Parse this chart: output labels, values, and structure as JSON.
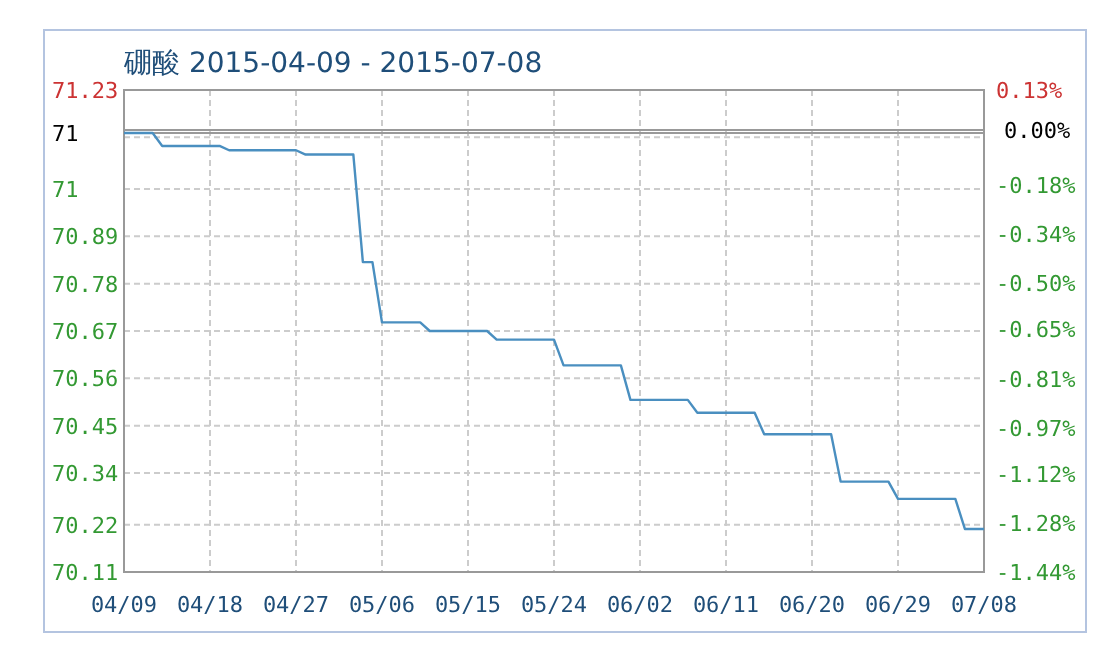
{
  "chart_data": {
    "type": "line",
    "title": "硼酸 2015-04-09 - 2015-07-08",
    "x": [
      "2015-04-09",
      "2015-04-12",
      "2015-04-13",
      "2015-04-19",
      "2015-04-20",
      "2015-04-27",
      "2015-04-28",
      "2015-05-03",
      "2015-05-04",
      "2015-05-05",
      "2015-05-06",
      "2015-05-10",
      "2015-05-11",
      "2015-05-17",
      "2015-05-18",
      "2015-05-24",
      "2015-05-25",
      "2015-05-31",
      "2015-06-01",
      "2015-06-07",
      "2015-06-08",
      "2015-06-14",
      "2015-06-15",
      "2015-06-22",
      "2015-06-23",
      "2015-06-28",
      "2015-06-29",
      "2015-07-05",
      "2015-07-06",
      "2015-07-08"
    ],
    "series": [
      {
        "color": "#4a8fc0",
        "values": [
          71.13,
          71.13,
          71.1,
          71.1,
          71.09,
          71.09,
          71.08,
          71.08,
          70.83,
          70.83,
          70.69,
          70.69,
          70.67,
          70.67,
          70.65,
          70.65,
          70.59,
          70.59,
          70.51,
          70.51,
          70.48,
          70.48,
          70.43,
          70.43,
          70.32,
          70.32,
          70.28,
          70.28,
          70.21,
          70.21
        ]
      }
    ],
    "xlim": [
      "2015-04-09",
      "2015-07-08"
    ],
    "xticks": [
      {
        "value": "2015-04-09",
        "label": "04/09"
      },
      {
        "value": "2015-04-18",
        "label": "04/18"
      },
      {
        "value": "2015-04-27",
        "label": "04/27"
      },
      {
        "value": "2015-05-06",
        "label": "05/06"
      },
      {
        "value": "2015-05-15",
        "label": "05/15"
      },
      {
        "value": "2015-05-24",
        "label": "05/24"
      },
      {
        "value": "2015-06-02",
        "label": "06/02"
      },
      {
        "value": "2015-06-11",
        "label": "06/11"
      },
      {
        "value": "2015-06-20",
        "label": "06/20"
      },
      {
        "value": "2015-06-29",
        "label": "06/29"
      },
      {
        "value": "2015-07-08",
        "label": "07/08"
      }
    ],
    "ylim": [
      70.11,
      71.23
    ],
    "yticks": [
      70.11,
      70.22,
      70.34,
      70.45,
      70.56,
      70.67,
      70.78,
      70.89,
      71,
      {
        "value": 71.12,
        "label": null
      },
      71.23
    ],
    "y2lim": [
      -1.44,
      0.13
    ],
    "y2ticks": [
      {
        "value": -1.44,
        "label": "-1.44%"
      },
      {
        "value": -1.28,
        "label": "-1.28%"
      },
      {
        "value": -1.12,
        "label": "-1.12%"
      },
      {
        "value": -0.97,
        "label": "-0.97%"
      },
      {
        "value": -0.81,
        "label": "-0.81%"
      },
      {
        "value": -0.65,
        "label": "-0.65%"
      },
      {
        "value": -0.5,
        "label": "-0.50%"
      },
      {
        "value": -0.34,
        "label": "-0.34%"
      },
      {
        "value": -0.18,
        "label": "-0.18%"
      },
      {
        "value": 0.13,
        "label": "0.13%"
      }
    ],
    "ref_lines": [
      {
        "axis": "y",
        "value": 71.13,
        "label": "71",
        "color": "#999999"
      },
      {
        "axis": "y2",
        "value": 0,
        "label": "0.00%",
        "color": "#999999"
      }
    ],
    "grid": true
  }
}
